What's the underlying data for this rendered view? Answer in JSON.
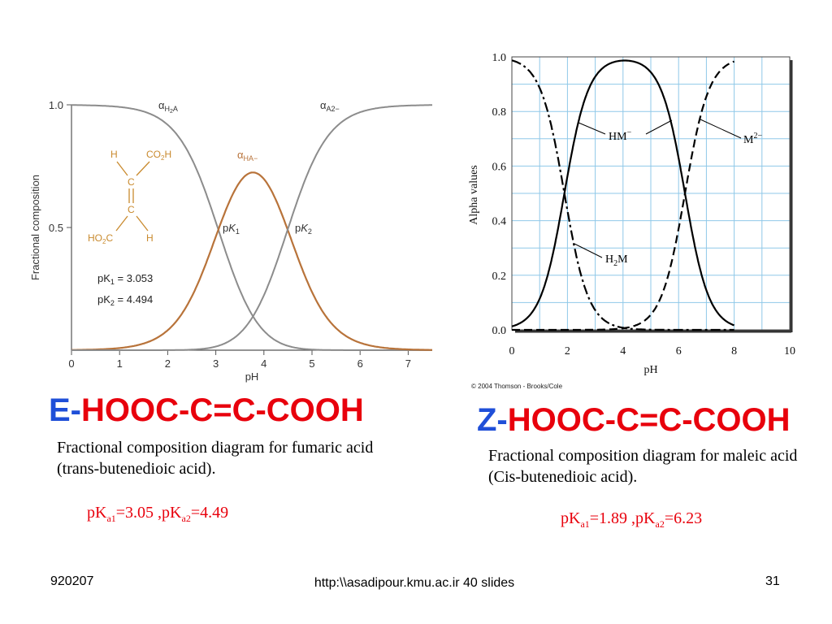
{
  "chart_data": [
    {
      "type": "line",
      "xlabel": "pH",
      "ylabel": "Fractional composition",
      "xlim": [
        0,
        7.5
      ],
      "ylim": [
        0,
        1.0
      ],
      "x_ticks": [
        "0",
        "1",
        "2",
        "3",
        "4",
        "5",
        "6",
        "7"
      ],
      "y_ticks": [
        "0.5",
        "1.0"
      ],
      "grid": false,
      "pK1": 3.053,
      "pK2": 4.494,
      "series": [
        {
          "name": "αH2A",
          "color": "#8c8c8c"
        },
        {
          "name": "αHA−",
          "color": "#b8733a"
        },
        {
          "name": "αA2−",
          "color": "#8c8c8c"
        }
      ],
      "series_labels": {
        "h2a_base": "α",
        "h2a_sub1": "H",
        "h2a_sub2": "2",
        "h2a_sub3": "A",
        "ha_base": "α",
        "ha_sub": "HA−",
        "a_base": "α",
        "a_sub": "A2−"
      },
      "annotations": {
        "pk1_p": "p",
        "pk1_k": "K",
        "pk1_sub": "1",
        "pk2_p": "p",
        "pk2_k": "K",
        "pk2_sub": "2"
      },
      "structure_labels": {
        "h_top": "H",
        "co2h_top": "CO",
        "co2h_top_sub": "2",
        "co2h_top_h": "H",
        "c_top": "C",
        "c_bottom": "C",
        "ho2c": "HO",
        "ho2c_sub": "2",
        "ho2c_c": "C",
        "h_bottom": "H"
      },
      "inset_text": {
        "pk1_label": "pK",
        "pk1_sub": "1",
        "pk1_value": " = 3.053",
        "pk2_label": "pK",
        "pk2_sub": "2",
        "pk2_value": " = 4.494"
      }
    },
    {
      "type": "line",
      "xlabel": "pH",
      "ylabel": "Alpha values",
      "xlim": [
        0,
        10
      ],
      "ylim": [
        0,
        1.0
      ],
      "x_ticks": [
        "0",
        "2",
        "4",
        "6",
        "8",
        "10"
      ],
      "y_ticks": [
        "0.0",
        "0.2",
        "0.4",
        "0.6",
        "0.8",
        "1.0"
      ],
      "grid": true,
      "grid_color": "#8fc8e8",
      "pK1": 1.89,
      "pK2": 6.23,
      "x_data_max": 8,
      "series": [
        {
          "name": "H2M",
          "style": "dash-dot"
        },
        {
          "name": "HM−",
          "style": "solid"
        },
        {
          "name": "M2−",
          "style": "dashed"
        }
      ],
      "labels": {
        "hm": "HM",
        "hm_sup": "−",
        "m": "M",
        "m_sup": "2−",
        "h2m_h": "H",
        "h2m_sub": "2",
        "h2m_m": "M"
      },
      "credit": "© 2004 Thomson - Brooks/Cole"
    }
  ],
  "left": {
    "heading_prefix": "E-",
    "heading_rest": "HOOC-C=C-COOH",
    "caption": "Fractional composition diagram for fumaric acid (trans-butenedioic acid).",
    "pk_a": "pK",
    "pk_a_sub1": "a1",
    "pk_a_val1": "=3.05 ,pK",
    "pk_a_sub2": "a2",
    "pk_a_val2": "=4.49"
  },
  "right": {
    "heading_prefix": "Z-",
    "heading_rest": "HOOC-C=C-COOH",
    "caption": "Fractional composition diagram for maleic acid (Cis-butenedioic acid).",
    "pk_a": "pK",
    "pk_a_sub1": "a1",
    "pk_a_val1": "=1.89 ,pK",
    "pk_a_sub2": "a2",
    "pk_a_val2": "=6.23"
  },
  "footer": {
    "left": "920207",
    "center": "http:\\\\asadipour.kmu.ac.ir  40 slides",
    "right": "31"
  },
  "colors": {
    "blue": "#1f4fd8",
    "red": "#e8000c",
    "brown": "#b8733a",
    "gray": "#8c8c8c"
  }
}
